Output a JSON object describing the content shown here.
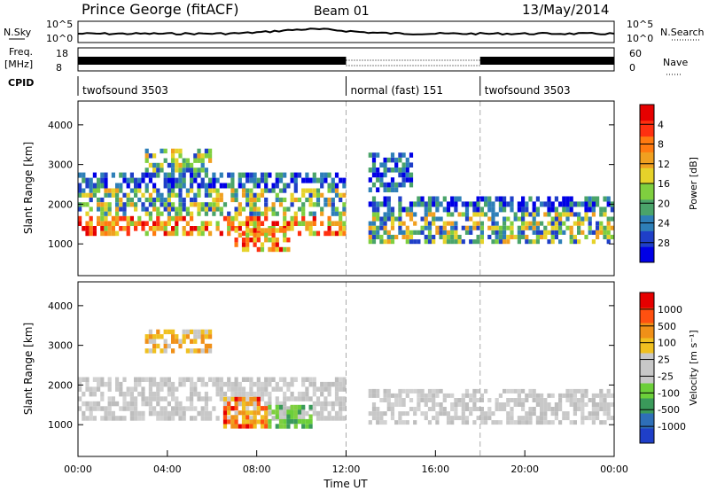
{
  "header": {
    "station": "Prince George (fitACF)",
    "beam": "Beam 01",
    "date": "13/May/2014"
  },
  "noise_panel": {
    "left_label": "N.Sky",
    "right_label": "N.Search",
    "left_ticks": [
      "10^5",
      "10^0"
    ],
    "right_ticks": [
      "10^5",
      "10^0"
    ]
  },
  "freq_panel": {
    "left_label_1": "Freq.",
    "left_label_2": "[MHz]",
    "right_label": "Nave",
    "left_ticks": [
      "18",
      "8"
    ],
    "right_ticks": [
      "60",
      "0"
    ]
  },
  "cpid": {
    "label": "CPID",
    "segments": [
      {
        "name": "twofsound 3503",
        "start_hour": 0
      },
      {
        "name": "normal (fast) 151",
        "start_hour": 12
      },
      {
        "name": "twofsound 3503",
        "start_hour": 18
      }
    ]
  },
  "chart_data": [
    {
      "type": "heatmap",
      "title": "",
      "ylabel": "Slant Range [km]",
      "xlabel": "",
      "xlim_hours": [
        0,
        24
      ],
      "ylim": [
        200,
        4600
      ],
      "y_ticks": [
        "1000",
        "2000",
        "3000",
        "4000"
      ],
      "colorbar": {
        "label": "Power [dB]",
        "ticks": [
          "4",
          "8",
          "12",
          "16",
          "20",
          "24",
          "28"
        ],
        "colors": [
          "#0000e6",
          "#1f3fc8",
          "#2e7fb8",
          "#4aa46a",
          "#7fcf3f",
          "#e6d22a",
          "#f0a020",
          "#ff7a10",
          "#ff3010",
          "#e60000"
        ]
      },
      "echo_regions": [
        {
          "t0": 0.0,
          "t1": 12.0,
          "r0": 1200,
          "r1": 1700,
          "level": "high"
        },
        {
          "t0": 0.0,
          "t1": 12.0,
          "r0": 1700,
          "r1": 2400,
          "level": "medium"
        },
        {
          "t0": 0.0,
          "t1": 12.0,
          "r0": 2400,
          "r1": 2800,
          "level": "low"
        },
        {
          "t0": 3.0,
          "t1": 6.0,
          "r0": 2800,
          "r1": 3400,
          "level": "medium"
        },
        {
          "t0": 7.0,
          "t1": 9.5,
          "r0": 800,
          "r1": 1400,
          "level": "high"
        },
        {
          "t0": 13.0,
          "t1": 15.0,
          "r0": 2300,
          "r1": 3300,
          "level": "low"
        },
        {
          "t0": 13.0,
          "t1": 24.0,
          "r0": 1000,
          "r1": 1800,
          "level": "medium"
        },
        {
          "t0": 13.0,
          "t1": 24.0,
          "r0": 1800,
          "r1": 2200,
          "level": "low"
        }
      ]
    },
    {
      "type": "heatmap",
      "title": "",
      "ylabel": "Slant Range [km]",
      "xlabel": "Time UT",
      "xlim_hours": [
        0,
        24
      ],
      "ylim": [
        200,
        4600
      ],
      "y_ticks": [
        "1000",
        "2000",
        "3000",
        "4000"
      ],
      "x_ticks": [
        "00:00",
        "04:00",
        "08:00",
        "12:00",
        "16:00",
        "20:00",
        "00:00"
      ],
      "colorbar": {
        "label": "Velocity [m s⁻¹]",
        "ticks": [
          "1000",
          "500",
          "100",
          "25",
          "-25",
          "-100",
          "-500",
          "-1000"
        ],
        "colors": [
          "#1f3fc8",
          "#2e6fb8",
          "#3a9a5a",
          "#6ccf3a",
          "#c8c8c8",
          "#c8c8c8",
          "#f0c020",
          "#f09018",
          "#ff5010",
          "#e60000"
        ]
      },
      "echo_regions": [
        {
          "t0": 0.0,
          "t1": 12.0,
          "r0": 1100,
          "r1": 2200,
          "level": "gray"
        },
        {
          "t0": 6.5,
          "t1": 8.5,
          "r0": 900,
          "r1": 1700,
          "level": "orange"
        },
        {
          "t0": 8.5,
          "t1": 10.5,
          "r0": 900,
          "r1": 1500,
          "level": "green"
        },
        {
          "t0": 3.0,
          "t1": 6.0,
          "r0": 2800,
          "r1": 3400,
          "level": "yellow"
        },
        {
          "t0": 13.0,
          "t1": 24.0,
          "r0": 1000,
          "r1": 1900,
          "level": "gray"
        }
      ]
    }
  ]
}
